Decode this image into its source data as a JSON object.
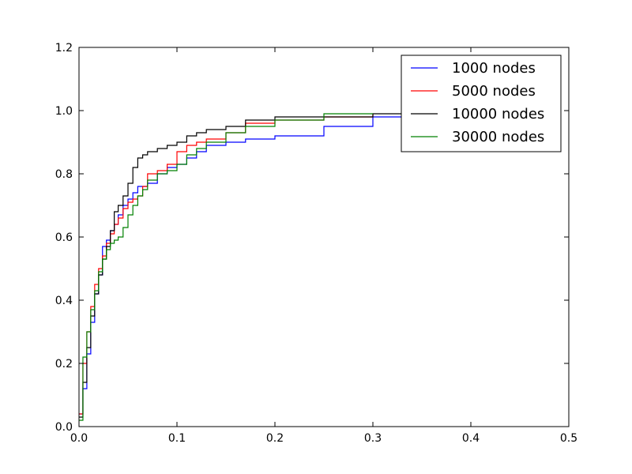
{
  "chart_data": {
    "type": "line",
    "title": "",
    "xlabel": "",
    "ylabel": "",
    "xlim": [
      0.0,
      0.5
    ],
    "ylim": [
      0.0,
      1.2
    ],
    "xticks": [
      0.0,
      0.1,
      0.2,
      0.3,
      0.4,
      0.5
    ],
    "yticks": [
      0.0,
      0.2,
      0.4,
      0.6,
      0.8,
      1.0,
      1.2
    ],
    "xtick_labels": [
      "0.0",
      "0.1",
      "0.2",
      "0.3",
      "0.4",
      "0.5"
    ],
    "ytick_labels": [
      "0.0",
      "0.2",
      "0.4",
      "0.6",
      "0.8",
      "1.0",
      "1.2"
    ],
    "grid": false,
    "legend_position": "top-right",
    "series": [
      {
        "name": "1000 nodes",
        "color": "#0000ff",
        "x": [
          0.0,
          0.004,
          0.008,
          0.012,
          0.016,
          0.02,
          0.024,
          0.028,
          0.032,
          0.036,
          0.04,
          0.045,
          0.05,
          0.055,
          0.06,
          0.07,
          0.08,
          0.09,
          0.1,
          0.11,
          0.12,
          0.13,
          0.15,
          0.17,
          0.2,
          0.25,
          0.3,
          0.35,
          0.4
        ],
        "y": [
          0.04,
          0.12,
          0.23,
          0.33,
          0.42,
          0.48,
          0.57,
          0.59,
          0.62,
          0.64,
          0.67,
          0.7,
          0.72,
          0.74,
          0.76,
          0.77,
          0.8,
          0.82,
          0.83,
          0.85,
          0.87,
          0.89,
          0.9,
          0.91,
          0.92,
          0.95,
          0.98,
          0.98,
          0.98
        ]
      },
      {
        "name": "5000 nodes",
        "color": "#ff0000",
        "x": [
          0.0,
          0.004,
          0.008,
          0.012,
          0.016,
          0.02,
          0.024,
          0.028,
          0.032,
          0.036,
          0.04,
          0.045,
          0.05,
          0.055,
          0.06,
          0.065,
          0.07,
          0.08,
          0.09,
          0.1,
          0.11,
          0.12,
          0.13,
          0.15,
          0.17,
          0.2,
          0.25,
          0.3
        ],
        "y": [
          0.04,
          0.2,
          0.3,
          0.38,
          0.45,
          0.5,
          0.54,
          0.58,
          0.61,
          0.64,
          0.66,
          0.69,
          0.71,
          0.72,
          0.73,
          0.76,
          0.8,
          0.81,
          0.83,
          0.87,
          0.89,
          0.9,
          0.91,
          0.93,
          0.96,
          0.97,
          0.98,
          0.99
        ]
      },
      {
        "name": "10000 nodes",
        "color": "#000000",
        "x": [
          0.0,
          0.004,
          0.008,
          0.012,
          0.016,
          0.02,
          0.024,
          0.028,
          0.032,
          0.036,
          0.04,
          0.045,
          0.05,
          0.055,
          0.06,
          0.065,
          0.07,
          0.08,
          0.09,
          0.1,
          0.11,
          0.12,
          0.13,
          0.15,
          0.17,
          0.2,
          0.25,
          0.3,
          0.35
        ],
        "y": [
          0.03,
          0.14,
          0.25,
          0.35,
          0.42,
          0.48,
          0.53,
          0.57,
          0.62,
          0.68,
          0.7,
          0.73,
          0.77,
          0.82,
          0.85,
          0.86,
          0.87,
          0.88,
          0.89,
          0.9,
          0.92,
          0.93,
          0.94,
          0.95,
          0.97,
          0.98,
          0.98,
          0.99,
          0.99
        ]
      },
      {
        "name": "30000 nodes",
        "color": "#008000",
        "x": [
          0.0,
          0.004,
          0.008,
          0.012,
          0.016,
          0.02,
          0.024,
          0.028,
          0.032,
          0.036,
          0.04,
          0.045,
          0.05,
          0.055,
          0.06,
          0.065,
          0.07,
          0.08,
          0.09,
          0.1,
          0.11,
          0.12,
          0.13,
          0.15,
          0.17,
          0.2,
          0.25,
          0.3
        ],
        "y": [
          0.02,
          0.22,
          0.3,
          0.37,
          0.43,
          0.49,
          0.53,
          0.56,
          0.58,
          0.59,
          0.6,
          0.63,
          0.67,
          0.7,
          0.73,
          0.75,
          0.78,
          0.8,
          0.81,
          0.83,
          0.86,
          0.88,
          0.9,
          0.93,
          0.95,
          0.97,
          0.99,
          0.99
        ]
      }
    ]
  }
}
